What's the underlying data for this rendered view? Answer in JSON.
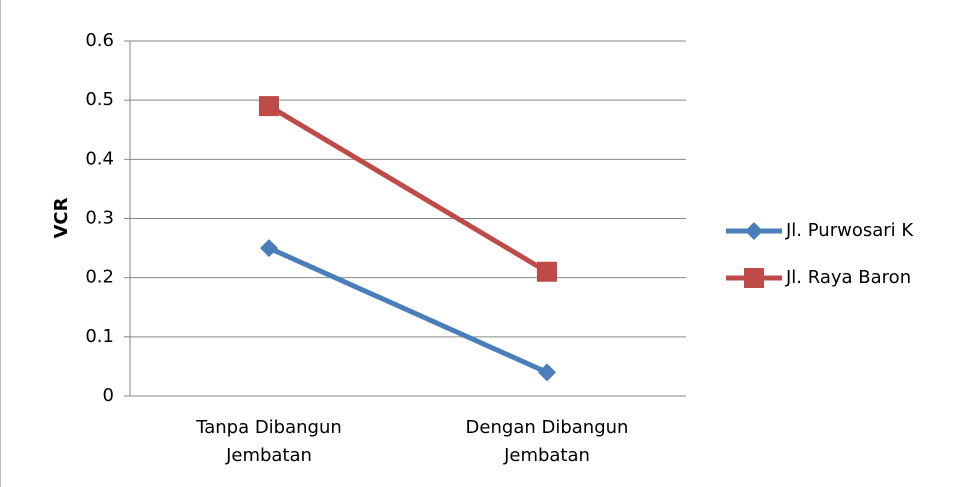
{
  "chart_data": {
    "type": "line",
    "ylabel": "VCR",
    "categories": [
      "Tanpa Dibangun Jembatan",
      "Dengan Dibangun Jembatan"
    ],
    "series": [
      {
        "name": "Jl. Purwosari K",
        "color": "#4a7ebb",
        "marker": "diamond",
        "values": [
          0.25,
          0.04
        ]
      },
      {
        "name": "Jl. Raya Baron",
        "color": "#be4b48",
        "marker": "square",
        "values": [
          0.49,
          0.21
        ]
      }
    ],
    "ylim": [
      0,
      0.6
    ],
    "yticks": [
      0,
      0.1,
      0.2,
      0.3,
      0.4,
      0.5,
      0.6
    ],
    "grid": true,
    "legend": "right"
  }
}
